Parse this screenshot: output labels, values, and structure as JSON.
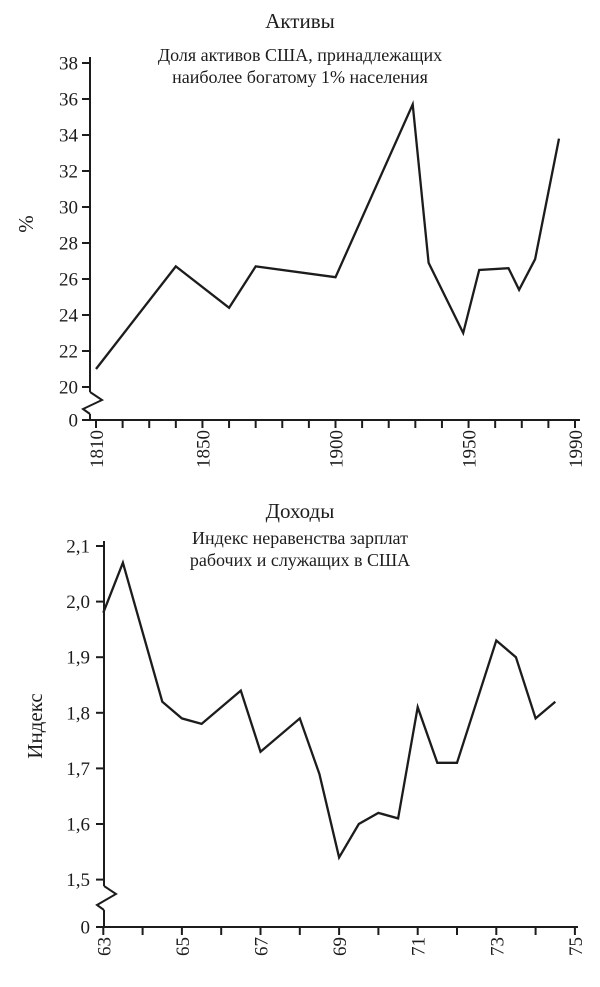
{
  "colors": {
    "background": "#ffffff",
    "ink": "#1c1c1c"
  },
  "chart_data": [
    {
      "type": "line",
      "title": "Активы",
      "subtitle": "Доля активов США, принадлежащих\nнаиболее богатому 1% населения",
      "ylabel": "%",
      "xlabel": "",
      "grid": false,
      "legend": "none",
      "axis_break_to_zero": true,
      "zero_tick_label": "0",
      "ylim_shown": [
        20,
        38
      ],
      "x_range": [
        1810,
        1990
      ],
      "y_ticks": [
        38,
        36,
        34,
        32,
        30,
        28,
        26,
        24,
        22,
        20
      ],
      "y_tick_labels": [
        "38",
        "36",
        "34",
        "32",
        "30",
        "28",
        "26",
        "24",
        "22",
        "20"
      ],
      "x_minor_ticks": {
        "start": 1810,
        "step": 10,
        "count": 19
      },
      "x_labeled_ticks": [
        {
          "v": 1810,
          "label": "1810"
        },
        {
          "v": 1850,
          "label": "1850"
        },
        {
          "v": 1900,
          "label": "1900"
        },
        {
          "v": 1950,
          "label": "1950"
        },
        {
          "v": 1990,
          "label": "1990"
        }
      ],
      "series": [
        {
          "points": [
            [
              1810,
              21.0
            ],
            [
              1840,
              26.7
            ],
            [
              1860,
              24.4
            ],
            [
              1870,
              26.7
            ],
            [
              1900,
              26.1
            ],
            [
              1929,
              35.7
            ],
            [
              1935,
              26.9
            ],
            [
              1948,
              23.0
            ],
            [
              1954,
              26.5
            ],
            [
              1965,
              26.6
            ],
            [
              1969,
              25.4
            ],
            [
              1975,
              27.1
            ],
            [
              1984,
              33.8
            ]
          ]
        }
      ]
    },
    {
      "type": "line",
      "title": "Доходы",
      "subtitle": "Индекс неравенства зарплат\nрабочих и служащих в США",
      "ylabel": "Индекс",
      "xlabel": "",
      "grid": false,
      "legend": "none",
      "axis_break_to_zero": true,
      "zero_tick_label": "0",
      "ylim_shown": [
        1.5,
        2.1
      ],
      "x_range": [
        1963,
        1975
      ],
      "y_ticks": [
        2.1,
        2.0,
        1.9,
        1.8,
        1.7,
        1.6,
        1.5
      ],
      "y_tick_labels": [
        "2,1",
        "2,0",
        "1,9",
        "1,8",
        "1,7",
        "1,6",
        "1,5"
      ],
      "x_minor_ticks": {
        "start": 1963,
        "step": 1,
        "count": 13
      },
      "x_labeled_ticks": [
        {
          "v": 1963,
          "label": "63"
        },
        {
          "v": 1965,
          "label": "65"
        },
        {
          "v": 1967,
          "label": "67"
        },
        {
          "v": 1969,
          "label": "69"
        },
        {
          "v": 1971,
          "label": "71"
        },
        {
          "v": 1973,
          "label": "73"
        },
        {
          "v": 1975,
          "label": "75"
        }
      ],
      "series": [
        {
          "points": [
            [
              1963.0,
              1.98
            ],
            [
              1963.5,
              2.07
            ],
            [
              1964.5,
              1.82
            ],
            [
              1965.0,
              1.79
            ],
            [
              1965.5,
              1.78
            ],
            [
              1966.5,
              1.84
            ],
            [
              1967.0,
              1.73
            ],
            [
              1968.0,
              1.79
            ],
            [
              1968.5,
              1.69
            ],
            [
              1969.0,
              1.54
            ],
            [
              1969.5,
              1.6
            ],
            [
              1970.0,
              1.62
            ],
            [
              1970.5,
              1.61
            ],
            [
              1971.0,
              1.81
            ],
            [
              1971.5,
              1.71
            ],
            [
              1972.0,
              1.71
            ],
            [
              1973.0,
              1.93
            ],
            [
              1973.5,
              1.9
            ],
            [
              1974.0,
              1.79
            ],
            [
              1974.5,
              1.82
            ]
          ]
        }
      ]
    }
  ]
}
